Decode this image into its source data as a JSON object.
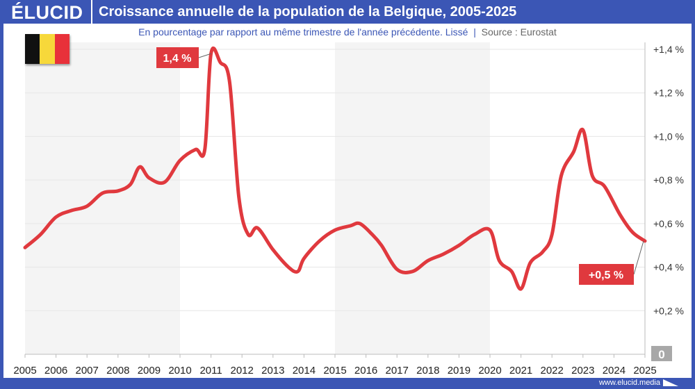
{
  "header": {
    "logo": "ÉLUCID",
    "title": "Croissance annuelle de la population de la Belgique, 2005-2025"
  },
  "subtitle": "En pourcentage par rapport au même trimestre de l'année précédente. Lissé",
  "source": "Source : Eurostat",
  "flag": {
    "country": "Belgique",
    "colors": [
      "#111111",
      "#f7d83a",
      "#e8313a"
    ]
  },
  "footer": "www.elucid.media",
  "colors": {
    "frame": "#3b56b5",
    "line": "#e0393e",
    "band": "#f4f4f4"
  },
  "chart_data": {
    "type": "line",
    "title": "Croissance annuelle de la population de la Belgique, 2005-2025",
    "xlim": [
      2005,
      2025
    ],
    "ylim": [
      0,
      1.4
    ],
    "x_ticks": [
      "2005",
      "2006",
      "2007",
      "2008",
      "2009",
      "2010",
      "2011",
      "2012",
      "2013",
      "2014",
      "2015",
      "2016",
      "2017",
      "2018",
      "2019",
      "2020",
      "2021",
      "2022",
      "2023",
      "2024",
      "2025"
    ],
    "y_ticks": [
      {
        "v": 0.2,
        "label": "+0,2 %"
      },
      {
        "v": 0.4,
        "label": "+0,4 %"
      },
      {
        "v": 0.6,
        "label": "+0,6 %"
      },
      {
        "v": 0.8,
        "label": "+0,8 %"
      },
      {
        "v": 1.0,
        "label": "+1,0 %"
      },
      {
        "v": 1.2,
        "label": "+1,2 %"
      },
      {
        "v": 1.4,
        "label": "+1,4 %"
      }
    ],
    "zero_label": "0",
    "grid": true,
    "shaded_periods": [
      [
        2005,
        2010
      ],
      [
        2015,
        2020
      ]
    ],
    "x": [
      2005.0,
      2005.5,
      2006.0,
      2006.5,
      2007.0,
      2007.5,
      2008.0,
      2008.4,
      2008.7,
      2009.0,
      2009.5,
      2010.0,
      2010.5,
      2010.8,
      2011.0,
      2011.3,
      2011.6,
      2011.9,
      2012.2,
      2012.5,
      2013.0,
      2013.5,
      2013.8,
      2014.0,
      2014.5,
      2015.0,
      2015.5,
      2015.8,
      2016.2,
      2016.5,
      2017.0,
      2017.5,
      2018.0,
      2018.5,
      2019.0,
      2019.5,
      2020.0,
      2020.3,
      2020.7,
      2021.0,
      2021.3,
      2021.7,
      2022.0,
      2022.3,
      2022.7,
      2023.0,
      2023.3,
      2023.7,
      2024.2,
      2024.6,
      2025.0
    ],
    "values": [
      0.49,
      0.55,
      0.63,
      0.66,
      0.68,
      0.74,
      0.75,
      0.78,
      0.86,
      0.81,
      0.79,
      0.89,
      0.94,
      0.94,
      1.38,
      1.34,
      1.25,
      0.72,
      0.55,
      0.58,
      0.48,
      0.4,
      0.38,
      0.44,
      0.52,
      0.57,
      0.59,
      0.6,
      0.55,
      0.5,
      0.39,
      0.38,
      0.43,
      0.46,
      0.5,
      0.55,
      0.57,
      0.43,
      0.38,
      0.3,
      0.42,
      0.47,
      0.55,
      0.82,
      0.93,
      1.03,
      0.82,
      0.77,
      0.64,
      0.56,
      0.52
    ],
    "annotations": [
      {
        "label": "1,4 %",
        "x": 2011.0,
        "y": 1.38
      },
      {
        "label": "+0,5 %",
        "x": 2025.0,
        "y": 0.52
      }
    ]
  }
}
